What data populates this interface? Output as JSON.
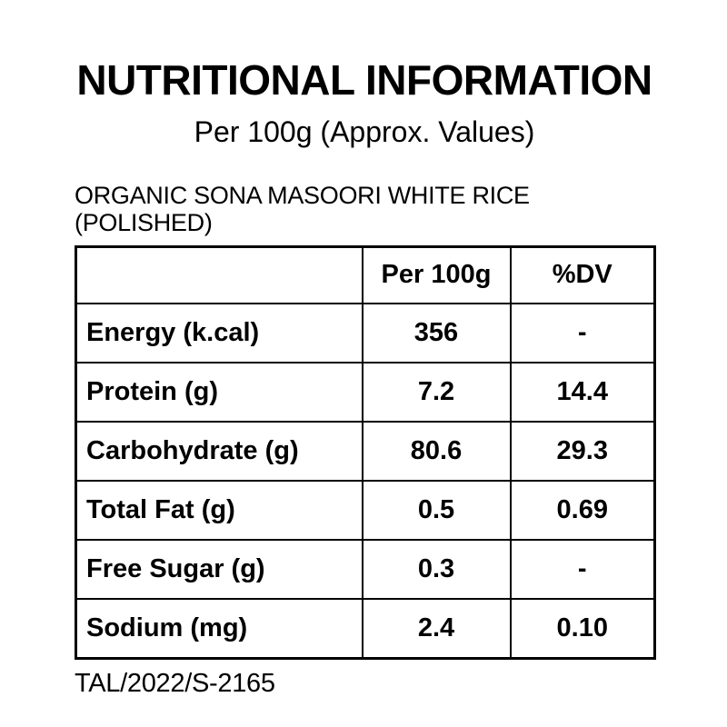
{
  "header": {
    "title": "NUTRITIONAL INFORMATION",
    "subtitle": "Per 100g (Approx. Values)"
  },
  "product_line": "ORGANIC SONA MASOORI WHITE RICE (POLISHED)",
  "table": {
    "columns": [
      "",
      "Per 100g",
      "%DV"
    ],
    "rows": [
      {
        "label": "Energy (k.cal)",
        "per_100g": "356",
        "dv": "-"
      },
      {
        "label": "Protein (g)",
        "per_100g": "7.2",
        "dv": "14.4"
      },
      {
        "label": "Carbohydrate (g)",
        "per_100g": "80.6",
        "dv": "29.3"
      },
      {
        "label": "Total Fat (g)",
        "per_100g": "0.5",
        "dv": "0.69"
      },
      {
        "label": "Free Sugar (g)",
        "per_100g": "0.3",
        "dv": "-"
      },
      {
        "label": "Sodium (mg)",
        "per_100g": "2.4",
        "dv": "0.10"
      }
    ]
  },
  "footer": {
    "license_code": "TAL/2022/S-2165"
  },
  "colors": {
    "text": "#000000",
    "background": "#ffffff",
    "border": "#000000"
  }
}
